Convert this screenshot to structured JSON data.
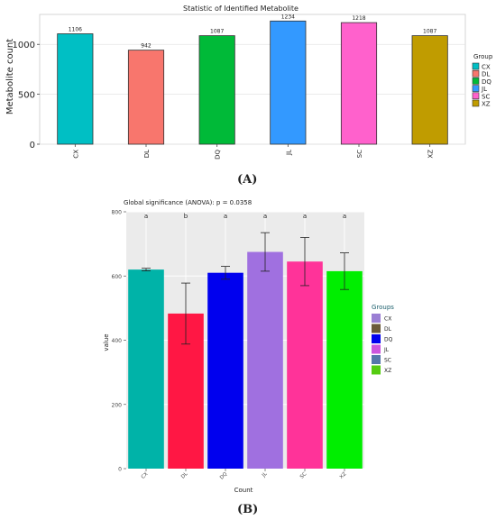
{
  "panels": {
    "a": {
      "label": "(A)"
    },
    "b": {
      "label": "(B)"
    }
  },
  "chart_data": [
    {
      "type": "bar",
      "title": "Statistic of Identified Metabolite",
      "xlabel": "",
      "ylabel": "Metabolite count",
      "categories": [
        "CX",
        "DL",
        "DQ",
        "JL",
        "SC",
        "XZ"
      ],
      "values": [
        1106,
        942,
        1087,
        1234,
        1218,
        1087
      ],
      "data_labels": [
        "1106",
        "942",
        "1087",
        "1234",
        "1218",
        "1087"
      ],
      "ylim": [
        0,
        1300
      ],
      "yticks": [
        0,
        500,
        1000
      ],
      "grid": true,
      "legend": {
        "title": "Group",
        "position": "right",
        "entries": [
          "CX",
          "DL",
          "DQ",
          "JL",
          "SC",
          "XZ"
        ]
      },
      "colors": [
        "#00BFC4",
        "#F8766D",
        "#00BA38",
        "#3399FF",
        "#FF61CC",
        "#C09C00"
      ]
    },
    {
      "type": "bar",
      "title": "Global significance (ANOVA): p = 0.0358",
      "xlabel": "Count",
      "ylabel": "value",
      "categories": [
        "CX",
        "DL",
        "DQ",
        "JL",
        "SC",
        "XZ"
      ],
      "values": [
        620,
        483,
        610,
        675,
        645,
        615
      ],
      "error": [
        4,
        95,
        20,
        60,
        75,
        57
      ],
      "significance_letters": [
        "a",
        "b",
        "a",
        "a",
        "a",
        "a"
      ],
      "ylim": [
        0,
        800
      ],
      "yticks": [
        0,
        200,
        400,
        600,
        800
      ],
      "grid": true,
      "legend": {
        "title": "Groups",
        "position": "right",
        "entries": [
          "CX",
          "DL",
          "DQ",
          "JL",
          "SC",
          "XZ"
        ]
      },
      "colors": [
        "#00B3A8",
        "#FF1744",
        "#0000EE",
        "#A070E0",
        "#FF3399",
        "#00EE00"
      ],
      "legend_colors": [
        "#9B7FD4",
        "#6B5A3A",
        "#0000EE",
        "#CC55DD",
        "#5577AA",
        "#55CC11"
      ]
    }
  ]
}
